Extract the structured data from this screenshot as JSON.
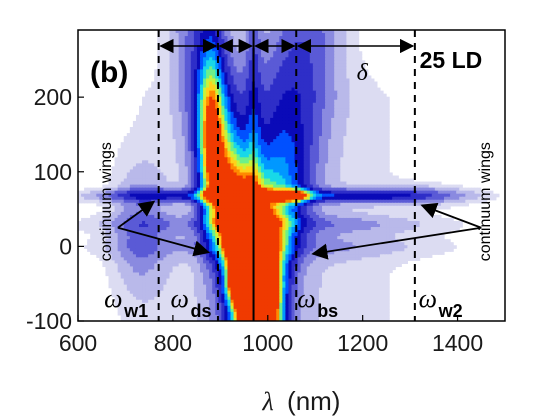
{
  "chart_data": {
    "type": "heatmap",
    "panel_label": "(b)",
    "corner_label": "25 LD",
    "xlabel_symbol": "λ",
    "xlabel_unit": "(nm)",
    "xlim": [
      600,
      1500
    ],
    "ylim": [
      -100,
      290
    ],
    "xticks": [
      600,
      800,
      1000,
      1200,
      1400
    ],
    "yticks": [
      -100,
      0,
      100,
      200
    ],
    "vlines": [
      {
        "x": 770,
        "style": "dashed",
        "label": "ω",
        "subscript": "w1"
      },
      {
        "x": 895,
        "style": "dashed",
        "label": "ω",
        "subscript": "ds"
      },
      {
        "x": 970,
        "style": "solid"
      },
      {
        "x": 1060,
        "style": "dashed",
        "label": "ω",
        "subscript": "bs"
      },
      {
        "x": 1310,
        "style": "dashed",
        "label": "ω",
        "subscript": "w2"
      }
    ],
    "delta_symbol": "δ",
    "annotations": {
      "wings_left": "continuum wings",
      "wings_right": "continuum wings"
    }
  }
}
